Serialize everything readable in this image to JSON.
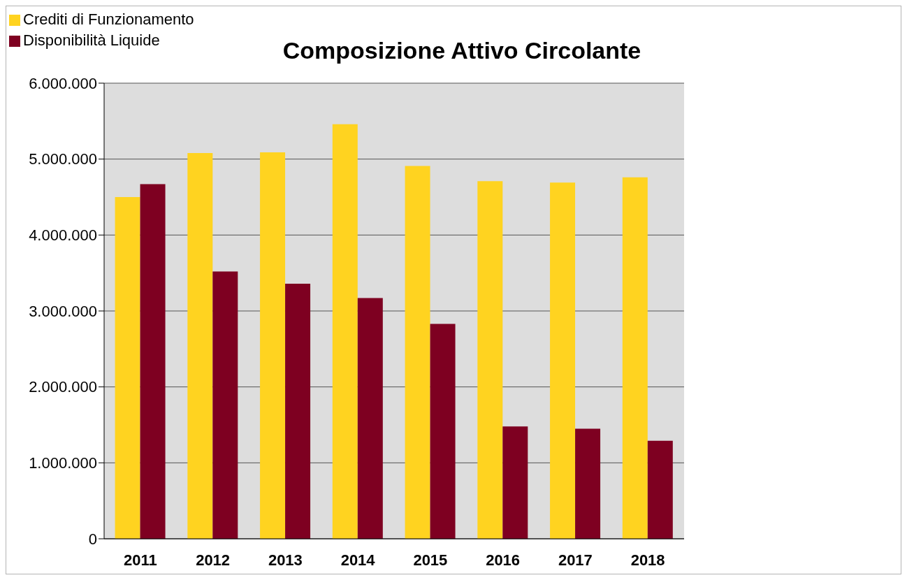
{
  "chart_data": {
    "type": "bar",
    "title": "Composizione Attivo Circolante",
    "categories": [
      "2011",
      "2012",
      "2013",
      "2014",
      "2015",
      "2016",
      "2017",
      "2018"
    ],
    "series": [
      {
        "name": "Crediti di Funzionamento",
        "color": "#ffd320",
        "values": [
          4500000,
          5080000,
          5090000,
          5460000,
          4910000,
          4710000,
          4690000,
          4760000
        ]
      },
      {
        "name": "Disponibilità Liquide",
        "color": "#7e0021",
        "values": [
          4670000,
          3520000,
          3360000,
          3170000,
          2830000,
          1480000,
          1450000,
          1290000
        ]
      }
    ],
    "ylim": [
      0,
      6000000
    ],
    "yticks": [
      0,
      {
        "value": 1000000,
        "label": "1.000.000"
      },
      {
        "value": 2000000,
        "label": "2.000.000"
      },
      {
        "value": 3000000,
        "label": "3.000.000"
      },
      {
        "value": 4000000,
        "label": "4.000.000"
      },
      {
        "value": 5000000,
        "label": "5.000.000"
      },
      {
        "value": 6000000,
        "label": "6.000.000"
      }
    ],
    "grid": "y",
    "legend": "top left"
  }
}
